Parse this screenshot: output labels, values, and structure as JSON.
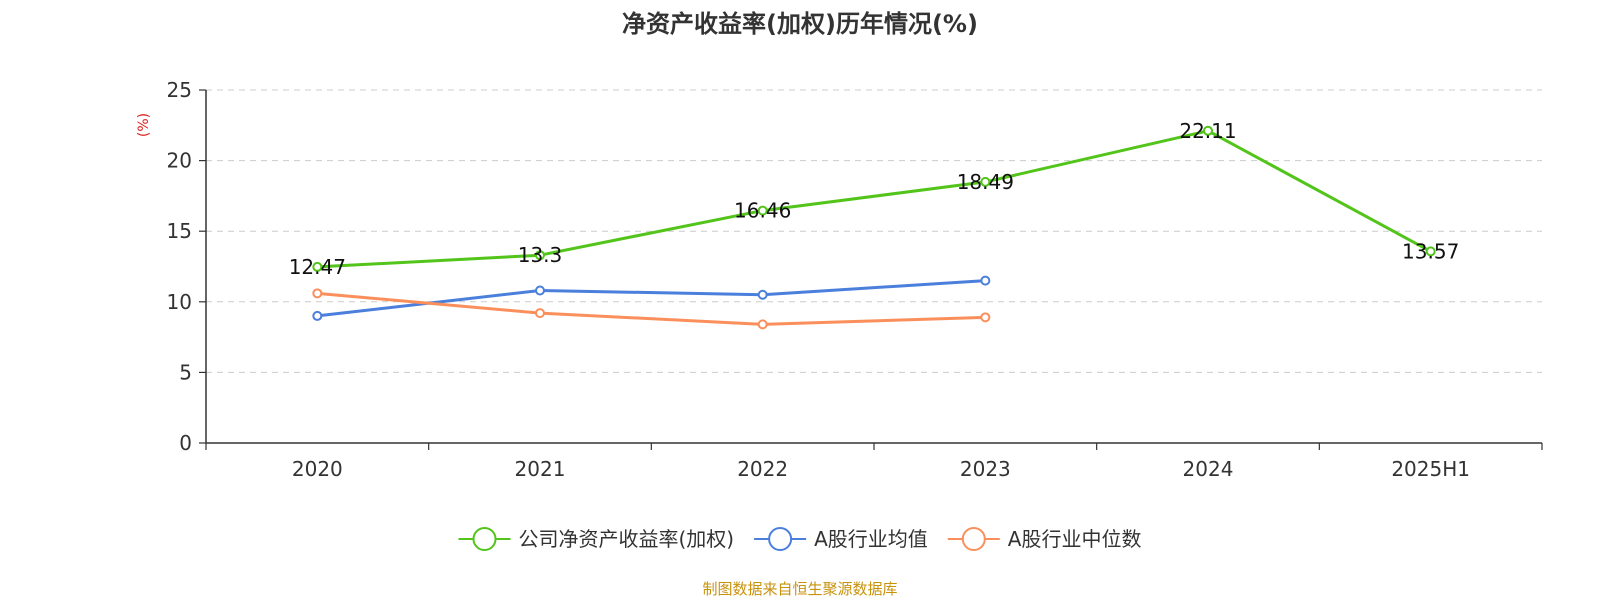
{
  "chart_data": {
    "type": "line",
    "title": "净资产收益率(加权)历年情况(%)",
    "ylabel": "(%)",
    "xlabel": "",
    "categories": [
      "2020",
      "2021",
      "2022",
      "2023",
      "2024",
      "2025H1"
    ],
    "ylim": [
      0,
      25
    ],
    "yticks": [
      0,
      5,
      10,
      15,
      20,
      25
    ],
    "grid": true,
    "legend_position": "bottom",
    "series": [
      {
        "name": "公司净资产收益率(加权)",
        "values": [
          12.47,
          13.3,
          16.46,
          18.49,
          22.11,
          13.57
        ],
        "data_labels": [
          "12.47",
          "13.3",
          "16.46",
          "18.49",
          "22.11",
          "13.57"
        ],
        "color": "#52c41a"
      },
      {
        "name": "A股行业均值",
        "values": [
          9.0,
          10.8,
          10.5,
          11.5,
          null,
          null
        ],
        "color": "#4a7fdc"
      },
      {
        "name": "A股行业中位数",
        "values": [
          10.6,
          9.2,
          8.4,
          8.9,
          null,
          null
        ],
        "color": "#fb8f5c"
      }
    ],
    "source": "制图数据来自恒生聚源数据库",
    "ylabel_color": "#e02020",
    "source_color": "#c8920c"
  }
}
